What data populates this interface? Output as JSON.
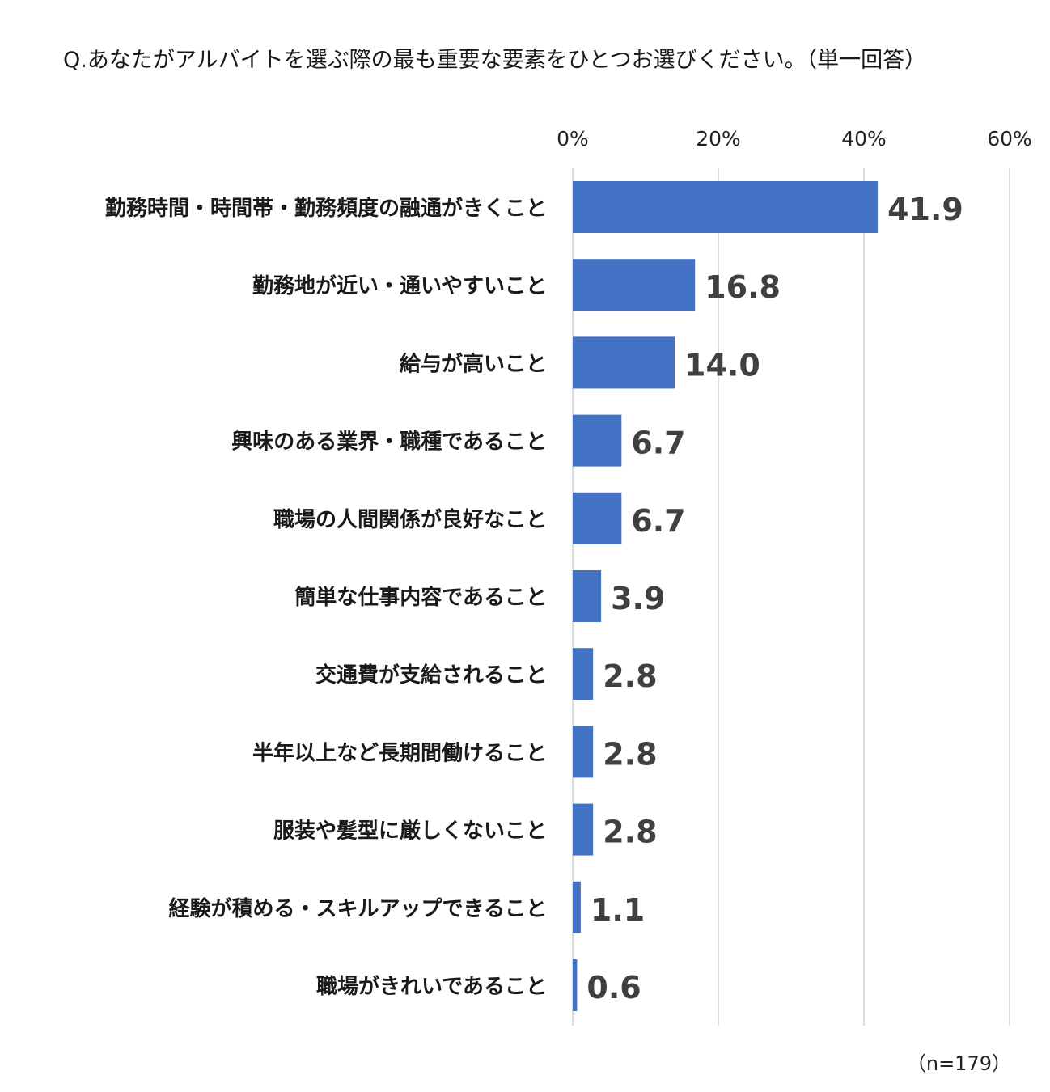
{
  "question": "Q.あなたがアルバイトを選ぶ際の最も重要な要素をひとつお選びください。（単一回答）",
  "sample_size": "（n=179）",
  "colors": {
    "bar": "#4472C4",
    "grid": "#d0d0d0",
    "value_label": "#404040",
    "category_label": "#1a1a1a"
  },
  "chart_data": {
    "type": "bar",
    "orientation": "horizontal",
    "categories": [
      "勤務時間・時間帯・勤務頻度の融通がきくこと",
      "勤務地が近い・通いやすいこと",
      "給与が高いこと",
      "興味のある業界・職種であること",
      "職場の人間関係が良好なこと",
      "簡単な仕事内容であること",
      "交通費が支給されること",
      "半年以上など長期間働けること",
      "服装や髪型に厳しくないこと",
      "経験が積める・スキルアップできること",
      "職場がきれいであること"
    ],
    "values": [
      41.9,
      16.8,
      14.0,
      6.7,
      6.7,
      3.9,
      2.8,
      2.8,
      2.8,
      1.1,
      0.6
    ],
    "value_labels": [
      "41.9",
      "16.8",
      "14.0",
      "6.7",
      "6.7",
      "3.9",
      "2.8",
      "2.8",
      "2.8",
      "1.1",
      "0.6"
    ],
    "xlim": [
      0,
      60
    ],
    "x_ticks": [
      0,
      20,
      40,
      60
    ],
    "x_tick_labels": [
      "0%",
      "20%",
      "40%",
      "60%"
    ],
    "axis_position": "top",
    "grid": true,
    "legend": "none"
  }
}
